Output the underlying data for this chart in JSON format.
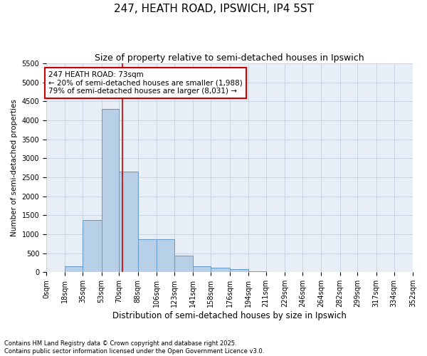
{
  "title1": "247, HEATH ROAD, IPSWICH, IP4 5ST",
  "title2": "Size of property relative to semi-detached houses in Ipswich",
  "xlabel": "Distribution of semi-detached houses by size in Ipswich",
  "ylabel": "Number of semi-detached properties",
  "footer1": "Contains HM Land Registry data © Crown copyright and database right 2025.",
  "footer2": "Contains public sector information licensed under the Open Government Licence v3.0.",
  "ann_line1": "247 HEATH ROAD: 73sqm",
  "ann_line2": "← 20% of semi-detached houses are smaller (1,988)",
  "ann_line3": "79% of semi-detached houses are larger (8,031) →",
  "property_sqm": 73,
  "bin_edges": [
    0,
    18,
    35,
    53,
    70,
    88,
    106,
    123,
    141,
    158,
    176,
    194,
    211,
    229,
    246,
    264,
    282,
    299,
    317,
    334,
    352
  ],
  "bar_values": [
    3,
    150,
    1380,
    4300,
    2650,
    870,
    870,
    430,
    165,
    110,
    75,
    30,
    10,
    5,
    3,
    2,
    1,
    1,
    1,
    1
  ],
  "bar_color": "#b8cfe8",
  "bar_edge_color": "#6399c8",
  "vline_color": "#cc0000",
  "grid_color": "#c8d4e4",
  "background_color": "#e8eef6",
  "ylim": [
    0,
    5500
  ],
  "yticks": [
    0,
    500,
    1000,
    1500,
    2000,
    2500,
    3000,
    3500,
    4000,
    4500,
    5000,
    5500
  ],
  "annotation_box_color": "#cc0000",
  "title_fontsize": 11,
  "subtitle_fontsize": 9,
  "xlabel_fontsize": 8.5,
  "ylabel_fontsize": 7.5,
  "tick_fontsize": 7,
  "ann_fontsize": 7.5,
  "footer_fontsize": 6
}
